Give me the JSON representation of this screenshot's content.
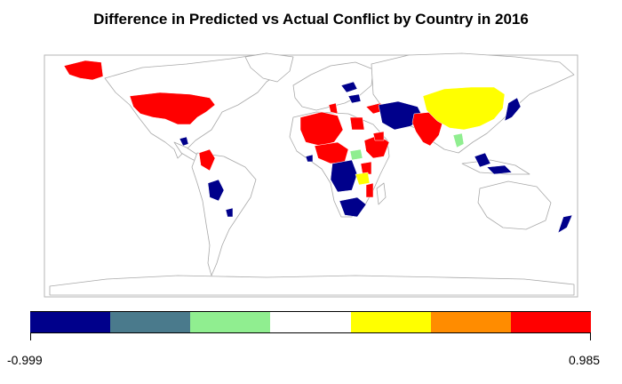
{
  "title": "Difference in Predicted vs Actual Conflict by Country in 2016",
  "legend": {
    "colors": [
      "#00008b",
      "#4a7a8c",
      "#90ee90",
      "#ffffff",
      "#ffff00",
      "#ff8c00",
      "#ff0000"
    ],
    "min_label": "-0.999",
    "max_label": "0.985",
    "min": -0.999,
    "max": 0.985
  },
  "map_data": {
    "basemap": "world country outlines",
    "country_values": [
      {
        "region": "United States",
        "bin": "high",
        "color": "#ff0000"
      },
      {
        "region": "Alaska",
        "bin": "high",
        "color": "#ff0000"
      },
      {
        "region": "Colombia",
        "bin": "high",
        "color": "#ff0000"
      },
      {
        "region": "Mexico region",
        "bin": "low",
        "color": "#00008b"
      },
      {
        "region": "Peru",
        "bin": "low",
        "color": "#00008b"
      },
      {
        "region": "Paraguay region",
        "bin": "low",
        "color": "#00008b"
      },
      {
        "region": "North Africa (Algeria, Libya)",
        "bin": "high",
        "color": "#ff0000"
      },
      {
        "region": "West Africa",
        "bin": "high",
        "color": "#ff0000"
      },
      {
        "region": "Central Africa",
        "bin": "low",
        "color": "#00008b"
      },
      {
        "region": "East Africa (Ethiopia, Kenya)",
        "bin": "high",
        "color": "#ff0000"
      },
      {
        "region": "South Sudan",
        "bin": "mid-low",
        "color": "#90ee90"
      },
      {
        "region": "Tanzania",
        "bin": "mid-high",
        "color": "#ffff00"
      },
      {
        "region": "South Africa",
        "bin": "low",
        "color": "#00008b"
      },
      {
        "region": "Middle East (Iraq, Iran, Saudi Arabia)",
        "bin": "low",
        "color": "#00008b"
      },
      {
        "region": "Yemen / Egypt",
        "bin": "high",
        "color": "#ff0000"
      },
      {
        "region": "India",
        "bin": "high",
        "color": "#ff0000"
      },
      {
        "region": "China",
        "bin": "mid-high",
        "color": "#ffff00"
      },
      {
        "region": "Thailand",
        "bin": "mid-low",
        "color": "#90ee90"
      },
      {
        "region": "Southeast Asia (Indonesia, Philippines)",
        "bin": "low",
        "color": "#00008b"
      },
      {
        "region": "Japan",
        "bin": "low",
        "color": "#00008b"
      },
      {
        "region": "Europe (Ukraine region)",
        "bin": "low",
        "color": "#00008b"
      },
      {
        "region": "Italy / Turkey",
        "bin": "high",
        "color": "#ff0000"
      },
      {
        "region": "New Zealand",
        "bin": "low",
        "color": "#00008b"
      }
    ]
  }
}
